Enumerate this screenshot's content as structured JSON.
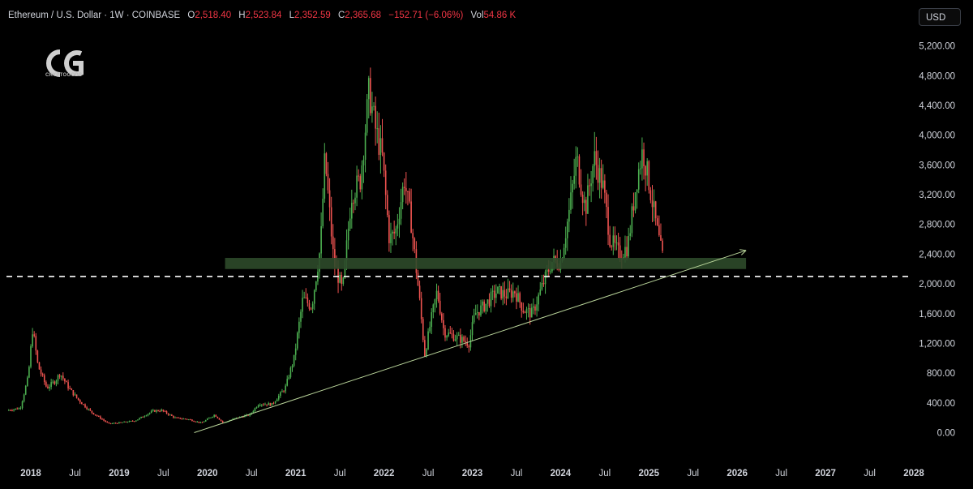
{
  "header": {
    "symbol": "Ethereum / U.S. Dollar · 1W · COINBASE",
    "open_label": "O",
    "open": "2,518.40",
    "high_label": "H",
    "high": "2,523.84",
    "low_label": "L",
    "low": "2,352.59",
    "close_label": "C",
    "close": "2,365.68",
    "change": "−152.71 (−6.06%)",
    "vol_label": "Vol",
    "volume": "54.86 K"
  },
  "currency": "USD",
  "logo": {
    "text": "CRYPTOGODS"
  },
  "colors": {
    "up": "#4caf50",
    "down": "#ef5350",
    "zone": "#2e4a2a",
    "trendline": "#b9d49a",
    "text": "#d1d4dc"
  },
  "chart_data": {
    "type": "candlestick",
    "x_axis": {
      "ticks": [
        {
          "label": "2018",
          "t": 2018.0,
          "bold": true
        },
        {
          "label": "Jul",
          "t": 2018.5,
          "bold": false
        },
        {
          "label": "2019",
          "t": 2019.0,
          "bold": true
        },
        {
          "label": "Jul",
          "t": 2019.5,
          "bold": false
        },
        {
          "label": "2020",
          "t": 2020.0,
          "bold": true
        },
        {
          "label": "Jul",
          "t": 2020.5,
          "bold": false
        },
        {
          "label": "2021",
          "t": 2021.0,
          "bold": true
        },
        {
          "label": "Jul",
          "t": 2021.5,
          "bold": false
        },
        {
          "label": "2022",
          "t": 2022.0,
          "bold": true
        },
        {
          "label": "Jul",
          "t": 2022.5,
          "bold": false
        },
        {
          "label": "2023",
          "t": 2023.0,
          "bold": true
        },
        {
          "label": "Jul",
          "t": 2023.5,
          "bold": false
        },
        {
          "label": "2024",
          "t": 2024.0,
          "bold": true
        },
        {
          "label": "Jul",
          "t": 2024.5,
          "bold": false
        },
        {
          "label": "2025",
          "t": 2025.0,
          "bold": true
        },
        {
          "label": "Jul",
          "t": 2025.5,
          "bold": false
        },
        {
          "label": "2026",
          "t": 2026.0,
          "bold": true
        },
        {
          "label": "Jul",
          "t": 2026.5,
          "bold": false
        },
        {
          "label": "2027",
          "t": 2027.0,
          "bold": true
        },
        {
          "label": "Jul",
          "t": 2027.5,
          "bold": false
        },
        {
          "label": "2028",
          "t": 2028.0,
          "bold": true
        }
      ],
      "range": [
        2017.9,
        2028.0
      ]
    },
    "y_axis": {
      "ticks": [
        "0.00",
        "400.00",
        "800.00",
        "1,200.00",
        "1,600.00",
        "2,000.00",
        "2,400.00",
        "2,800.00",
        "3,200.00",
        "3,600.00",
        "4,000.00",
        "4,400.00",
        "4,800.00",
        "5,200.00"
      ],
      "tick_values": [
        0,
        400,
        800,
        1200,
        1600,
        2000,
        2400,
        2800,
        3200,
        3600,
        4000,
        4400,
        4800,
        5200
      ],
      "range": [
        -100,
        5200
      ]
    },
    "price_path": [
      [
        2017.75,
        300
      ],
      [
        2017.9,
        330
      ],
      [
        2017.99,
        750
      ],
      [
        2018.04,
        1400
      ],
      [
        2018.1,
        900
      ],
      [
        2018.2,
        600
      ],
      [
        2018.3,
        700
      ],
      [
        2018.35,
        800
      ],
      [
        2018.45,
        600
      ],
      [
        2018.55,
        450
      ],
      [
        2018.7,
        280
      ],
      [
        2018.9,
        120
      ],
      [
        2019.0,
        130
      ],
      [
        2019.2,
        160
      ],
      [
        2019.4,
        290
      ],
      [
        2019.5,
        300
      ],
      [
        2019.65,
        200
      ],
      [
        2019.8,
        180
      ],
      [
        2019.95,
        130
      ],
      [
        2020.1,
        240
      ],
      [
        2020.2,
        130
      ],
      [
        2020.35,
        200
      ],
      [
        2020.5,
        240
      ],
      [
        2020.6,
        390
      ],
      [
        2020.75,
        380
      ],
      [
        2020.9,
        600
      ],
      [
        2021.0,
        1000
      ],
      [
        2021.1,
        1800
      ],
      [
        2021.2,
        1700
      ],
      [
        2021.3,
        2500
      ],
      [
        2021.35,
        3700
      ],
      [
        2021.45,
        2300
      ],
      [
        2021.55,
        1900
      ],
      [
        2021.65,
        3200
      ],
      [
        2021.75,
        3400
      ],
      [
        2021.85,
        4600
      ],
      [
        2021.92,
        4100
      ],
      [
        2022.0,
        3700
      ],
      [
        2022.08,
        2600
      ],
      [
        2022.15,
        2700
      ],
      [
        2022.25,
        3400
      ],
      [
        2022.33,
        2800
      ],
      [
        2022.42,
        1800
      ],
      [
        2022.48,
        1050
      ],
      [
        2022.55,
        1500
      ],
      [
        2022.62,
        1900
      ],
      [
        2022.7,
        1350
      ],
      [
        2022.8,
        1300
      ],
      [
        2022.9,
        1250
      ],
      [
        2022.98,
        1200
      ],
      [
        2023.05,
        1600
      ],
      [
        2023.15,
        1700
      ],
      [
        2023.3,
        1900
      ],
      [
        2023.4,
        1850
      ],
      [
        2023.5,
        1900
      ],
      [
        2023.6,
        1650
      ],
      [
        2023.7,
        1600
      ],
      [
        2023.82,
        2000
      ],
      [
        2023.92,
        2300
      ],
      [
        2024.02,
        2300
      ],
      [
        2024.12,
        3000
      ],
      [
        2024.2,
        3700
      ],
      [
        2024.3,
        3000
      ],
      [
        2024.4,
        3700
      ],
      [
        2024.5,
        3300
      ],
      [
        2024.58,
        2600
      ],
      [
        2024.68,
        2400
      ],
      [
        2024.78,
        2500
      ],
      [
        2024.88,
        3400
      ],
      [
        2024.95,
        3800
      ],
      [
        2025.03,
        3300
      ],
      [
        2025.1,
        2800
      ],
      [
        2025.17,
        2365
      ]
    ],
    "horizontal_zone": {
      "low": 2200,
      "high": 2350,
      "from": 2020.2,
      "to": 2026.1
    },
    "dashed_level": 2100,
    "trendline": {
      "from": [
        2019.85,
        0
      ],
      "to": [
        2026.1,
        2450
      ]
    }
  }
}
